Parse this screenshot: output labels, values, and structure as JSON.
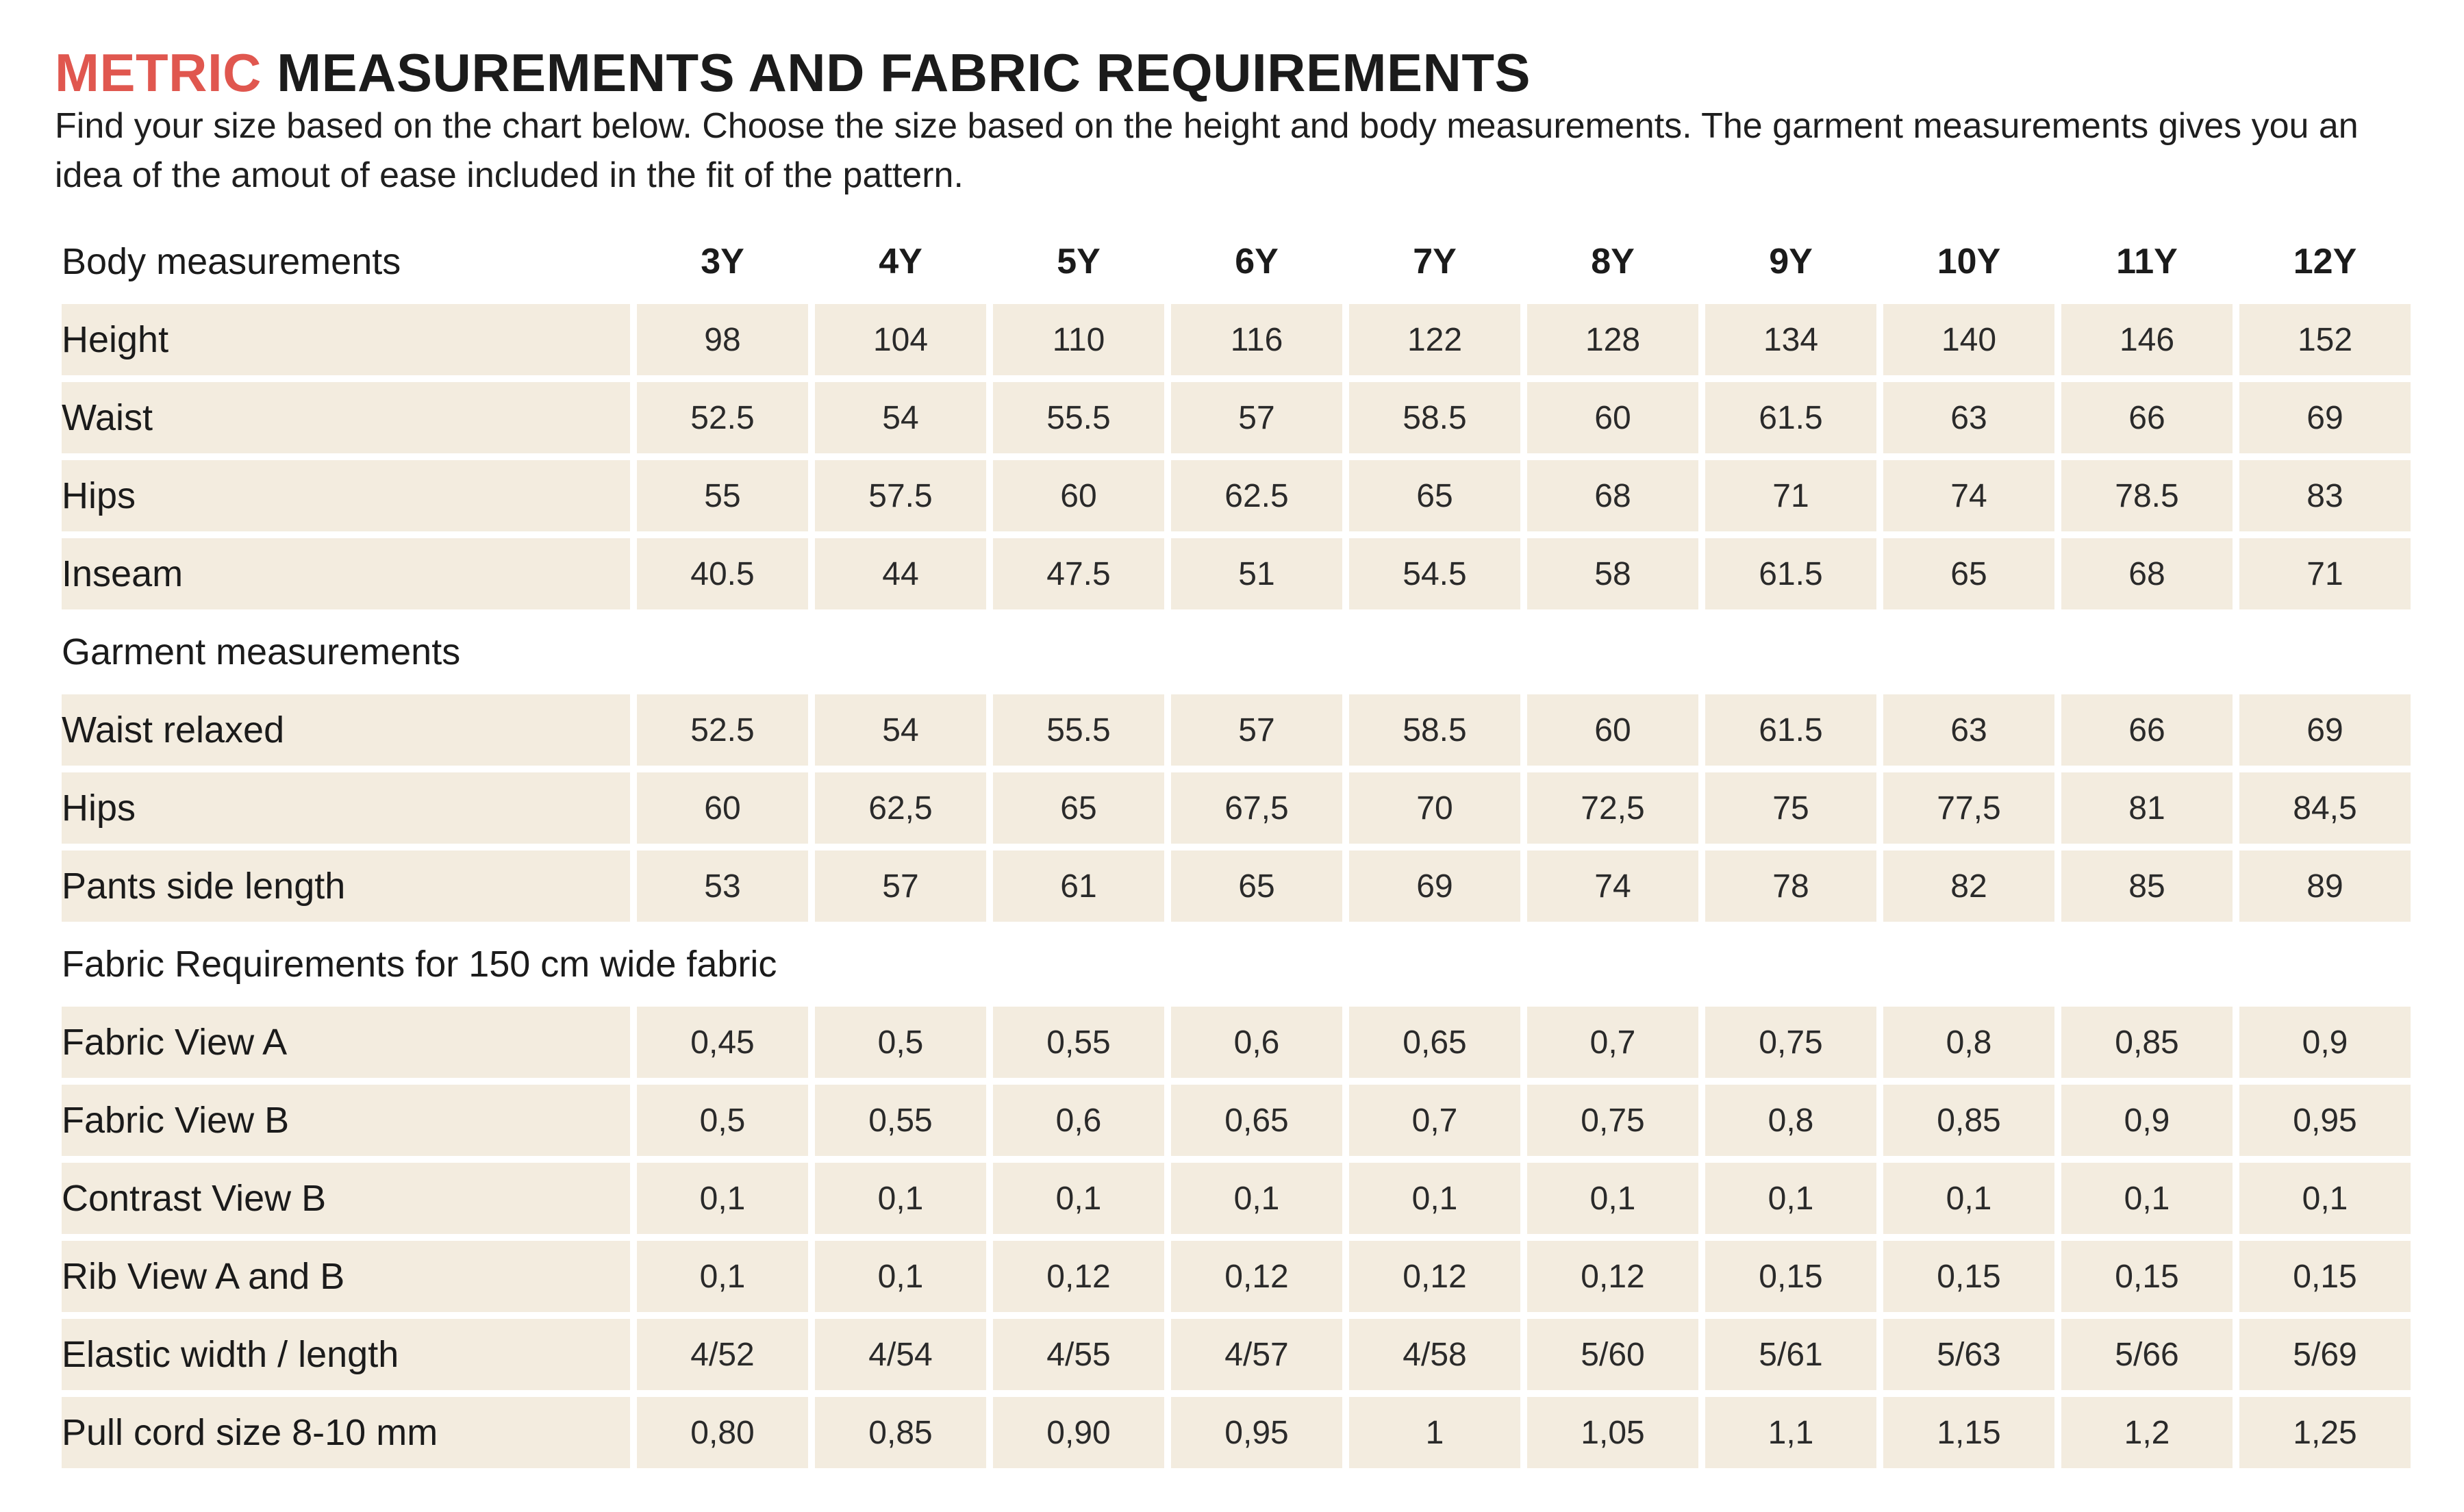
{
  "header": {
    "title_accent": "METRIC",
    "title_rest": "MEASUREMENTS AND FABRIC REQUIREMENTS",
    "intro": "Find your size based on the chart below. Choose the size based on the height and body measurements. The garment measurements gives you an idea of the amout of ease included in the fit of the pattern."
  },
  "colors": {
    "accent": "#e0574f",
    "cell_background": "#f3ecdf",
    "text": "#1b1b1b"
  },
  "table": {
    "sizes": [
      "3Y",
      "4Y",
      "5Y",
      "6Y",
      "7Y",
      "8Y",
      "9Y",
      "10Y",
      "11Y",
      "12Y"
    ],
    "body": {
      "label": "Body measurements",
      "rows": [
        {
          "label": "Height",
          "values": [
            "98",
            "104",
            "110",
            "116",
            "122",
            "128",
            "134",
            "140",
            "146",
            "152"
          ]
        },
        {
          "label": "Waist",
          "values": [
            "52.5",
            "54",
            "55.5",
            "57",
            "58.5",
            "60",
            "61.5",
            "63",
            "66",
            "69"
          ]
        },
        {
          "label": "Hips",
          "values": [
            "55",
            "57.5",
            "60",
            "62.5",
            "65",
            "68",
            "71",
            "74",
            "78.5",
            "83"
          ]
        },
        {
          "label": "Inseam",
          "values": [
            "40.5",
            "44",
            "47.5",
            "51",
            "54.5",
            "58",
            "61.5",
            "65",
            "68",
            "71"
          ]
        }
      ]
    },
    "garment": {
      "label": "Garment measurements",
      "rows": [
        {
          "label": "Waist relaxed",
          "values": [
            "52.5",
            "54",
            "55.5",
            "57",
            "58.5",
            "60",
            "61.5",
            "63",
            "66",
            "69"
          ]
        },
        {
          "label": "Hips",
          "values": [
            "60",
            "62,5",
            "65",
            "67,5",
            "70",
            "72,5",
            "75",
            "77,5",
            "81",
            "84,5"
          ]
        },
        {
          "label": "Pants side length",
          "values": [
            "53",
            "57",
            "61",
            "65",
            "69",
            "74",
            "78",
            "82",
            "85",
            "89"
          ]
        }
      ]
    },
    "fabric": {
      "label": "Fabric Requirements for 150 cm wide fabric",
      "rows": [
        {
          "label": "Fabric View A",
          "values": [
            "0,45",
            "0,5",
            "0,55",
            "0,6",
            "0,65",
            "0,7",
            "0,75",
            "0,8",
            "0,85",
            "0,9"
          ]
        },
        {
          "label": "Fabric View B",
          "values": [
            "0,5",
            "0,55",
            "0,6",
            "0,65",
            "0,7",
            "0,75",
            "0,8",
            "0,85",
            "0,9",
            "0,95"
          ]
        },
        {
          "label": "Contrast View B",
          "values": [
            "0,1",
            "0,1",
            "0,1",
            "0,1",
            "0,1",
            "0,1",
            "0,1",
            "0,1",
            "0,1",
            "0,1"
          ]
        },
        {
          "label": "Rib View A and B",
          "values": [
            "0,1",
            "0,1",
            "0,12",
            "0,12",
            "0,12",
            "0,12",
            "0,15",
            "0,15",
            "0,15",
            "0,15"
          ]
        },
        {
          "label": "Elastic width / length",
          "values": [
            "4/52",
            "4/54",
            "4/55",
            "4/57",
            "4/58",
            "5/60",
            "5/61",
            "5/63",
            "5/66",
            "5/69"
          ]
        },
        {
          "label": "Pull cord size 8-10 mm",
          "values": [
            "0,80",
            "0,85",
            "0,90",
            "0,95",
            "1",
            "1,05",
            "1,1",
            "1,15",
            "1,2",
            "1,25"
          ]
        }
      ]
    }
  }
}
